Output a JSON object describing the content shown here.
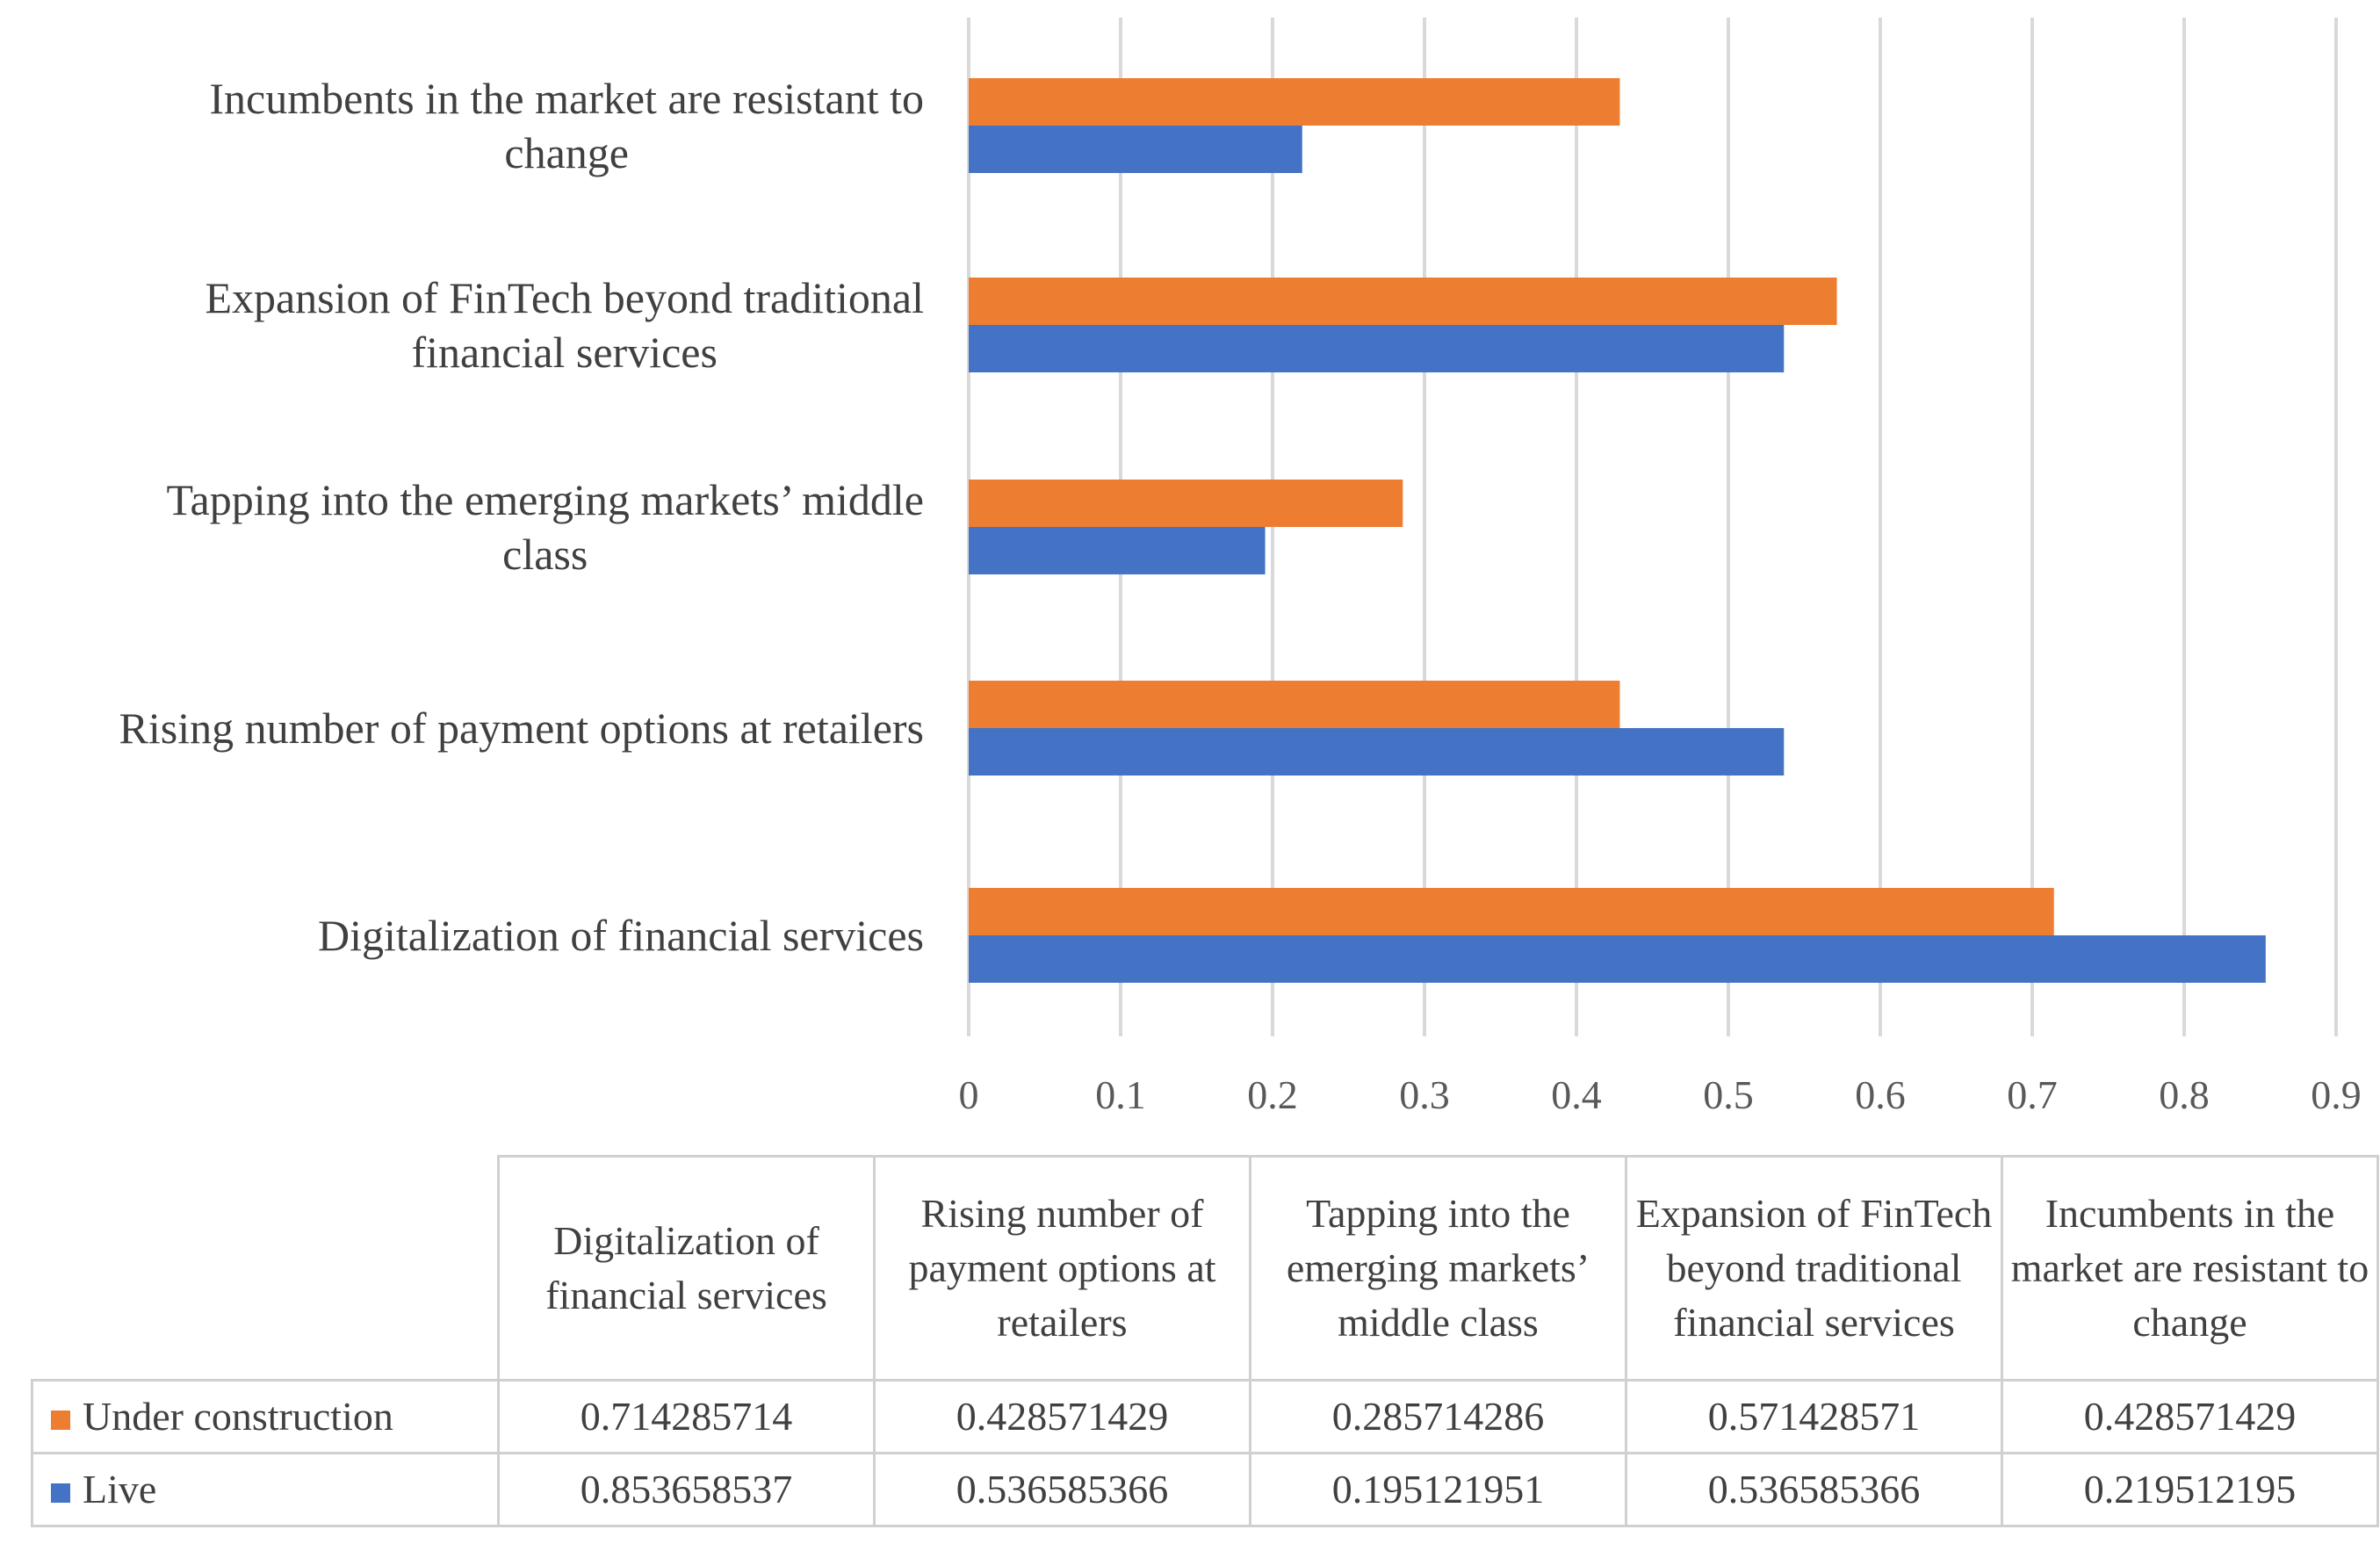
{
  "chart_data": {
    "type": "bar",
    "orientation": "horizontal",
    "categories": [
      "Digitalization of financial services",
      "Rising number of payment options at retailers",
      "Tapping into the emerging markets’ middle class",
      "Expansion of FinTech beyond traditional financial services",
      "Incumbents in the market are resistant to change"
    ],
    "category_lines": [
      [
        "Digitalization of financial services"
      ],
      [
        "Rising number of payment options at retailers"
      ],
      [
        "Tapping into the emerging markets’ middle",
        "class"
      ],
      [
        "Expansion of FinTech beyond traditional",
        "financial services"
      ],
      [
        "Incumbents in the market are resistant to",
        "change"
      ]
    ],
    "series": [
      {
        "name": "Under construction",
        "color": "#ED7D31",
        "values": [
          0.714285714,
          0.428571429,
          0.285714286,
          0.571428571,
          0.428571429
        ],
        "labels": [
          "0.714285714",
          "0.428571429",
          "0.285714286",
          "0.571428571",
          "0.428571429"
        ]
      },
      {
        "name": "Live",
        "color": "#4472C4",
        "values": [
          0.853658537,
          0.536585366,
          0.195121951,
          0.536585366,
          0.219512195
        ],
        "labels": [
          "0.853658537",
          "0.536585366",
          "0.195121951",
          "0.536585366",
          "0.219512195"
        ]
      }
    ],
    "xlim": [
      0,
      0.9
    ],
    "xticks": [
      "0",
      "0.1",
      "0.2",
      "0.3",
      "0.4",
      "0.5",
      "0.6",
      "0.7",
      "0.8",
      "0.9"
    ],
    "grid": true,
    "legend": "data-table-below"
  },
  "table": {
    "column_headers": [
      "Digitalization of financial services",
      "Rising number of payment options at retailers",
      "Tapping into the emerging markets’ middle class",
      "Expansion of FinTech beyond traditional financial services",
      "Incumbents in the market are resistant to change"
    ]
  }
}
